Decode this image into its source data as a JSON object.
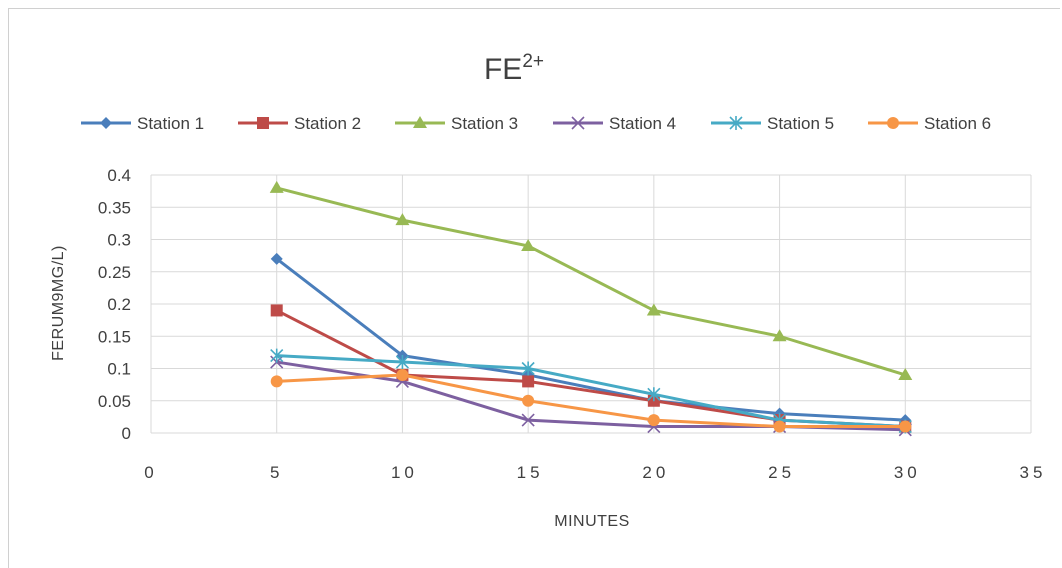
{
  "chart_data": {
    "type": "line",
    "title": "FE",
    "title_superscript": "2+",
    "xlabel": "MINUTES",
    "ylabel": "FERUM9MG/L)",
    "xlim": [
      0,
      35
    ],
    "ylim": [
      0,
      0.4
    ],
    "x_ticks": [
      "0",
      "5",
      "10",
      "15",
      "20",
      "25",
      "30",
      "35"
    ],
    "y_ticks": [
      "0",
      "0.05",
      "0.1",
      "0.15",
      "0.2",
      "0.25",
      "0.3",
      "0.35",
      "0.4"
    ],
    "grid": true,
    "legend_position": "top",
    "x": [
      5,
      10,
      15,
      20,
      25,
      30
    ],
    "series": [
      {
        "name": "Station 1",
        "color": "#4a7ebb",
        "marker": "diamond",
        "values": [
          0.27,
          0.12,
          0.09,
          0.05,
          0.03,
          0.02
        ]
      },
      {
        "name": "Station 2",
        "color": "#be4b48",
        "marker": "square",
        "values": [
          0.19,
          0.09,
          0.08,
          0.05,
          0.02,
          0.01
        ]
      },
      {
        "name": "Station 3",
        "color": "#98b954",
        "marker": "triangle",
        "values": [
          0.38,
          0.33,
          0.29,
          0.19,
          0.15,
          0.09
        ]
      },
      {
        "name": "Station 4",
        "color": "#7d60a0",
        "marker": "x",
        "values": [
          0.11,
          0.08,
          0.02,
          0.01,
          0.01,
          0.005
        ]
      },
      {
        "name": "Station 5",
        "color": "#46aac5",
        "marker": "star",
        "values": [
          0.12,
          0.11,
          0.1,
          0.06,
          0.02,
          0.01
        ]
      },
      {
        "name": "Station 6",
        "color": "#f79646",
        "marker": "circle",
        "values": [
          0.08,
          0.09,
          0.05,
          0.02,
          0.01,
          0.01
        ]
      }
    ]
  }
}
